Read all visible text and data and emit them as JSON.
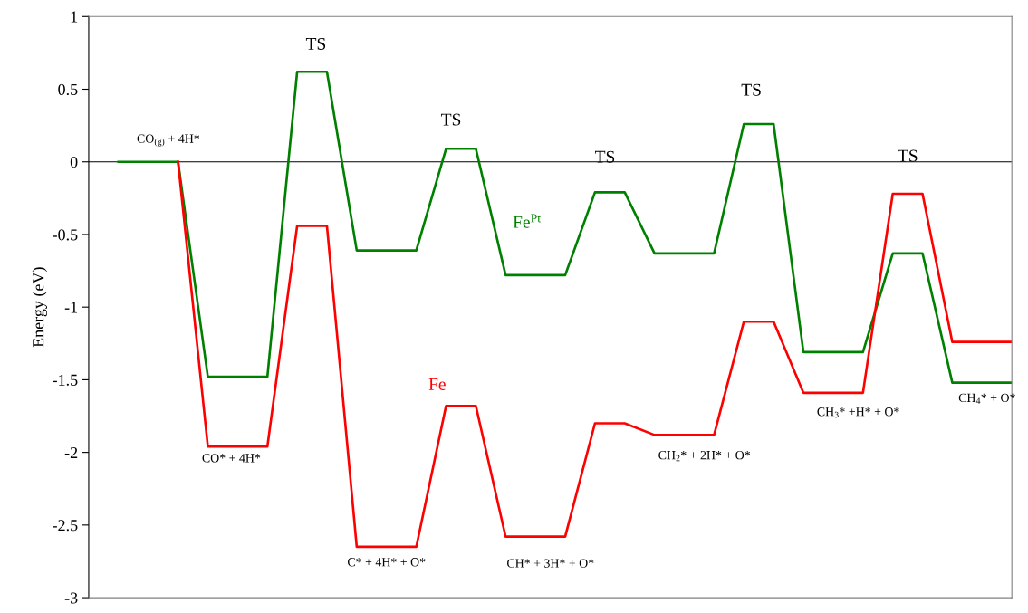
{
  "chart_data": {
    "type": "line",
    "ylabel": "Energy (eV)",
    "categories": [
      null,
      null,
      null,
      null,
      null,
      null,
      null,
      null,
      null,
      null,
      null,
      null,
      null,
      null,
      null,
      null,
      null,
      null,
      null,
      null,
      null,
      null,
      null,
      null,
      null,
      null,
      null,
      null,
      null,
      null,
      null
    ],
    "ylim": [
      -3,
      1
    ],
    "yticks": [
      -3,
      -2.5,
      -2,
      -1.5,
      -1,
      -0.5,
      0,
      0.5,
      1
    ],
    "tick_labels": "y",
    "grid": false,
    "legend": false,
    "marker": "none",
    "line_style": "solid",
    "series": [
      {
        "name": "Fe$^{Pt}$",
        "color": "#008000",
        "values": [
          0,
          0,
          0,
          -1.48,
          -1.48,
          -1.48,
          0.62,
          0.62,
          -0.61,
          -0.61,
          -0.61,
          0.09,
          0.09,
          -0.78,
          -0.78,
          -0.78,
          -0.21,
          -0.21,
          -0.63,
          -0.63,
          -0.63,
          0.26,
          0.26,
          -1.31,
          -1.31,
          -1.31,
          -0.63,
          -0.63,
          -1.52,
          -1.52,
          -1.52
        ]
      },
      {
        "name": "Fe",
        "color": "#ff0000",
        "values": [
          null,
          null,
          0,
          -1.96,
          -1.96,
          -1.96,
          -0.44,
          -0.44,
          -2.65,
          -2.65,
          -2.65,
          -1.68,
          -1.68,
          -2.58,
          -2.58,
          -2.58,
          -1.8,
          -1.8,
          -1.88,
          -1.88,
          -1.88,
          -1.1,
          -1.1,
          -1.59,
          -1.59,
          -1.59,
          -0.22,
          -0.22,
          -1.24,
          -1.24,
          -1.24
        ]
      }
    ],
    "ref_lines": [
      {
        "axis": "y",
        "value": 0,
        "color": "#000000"
      }
    ],
    "annotations": [
      "CO$_{(g)}$ + 4H*",
      "CO* + 4H*",
      "C* + 4H* + O*",
      "CH* + 3H* + O*",
      "CH$_{2}$* + 2H* + O*",
      "CH$_{3}$* +H* + O*",
      "CH$_{4}$* + O*",
      "TS",
      "TS",
      "TS",
      "TS",
      "TS"
    ]
  }
}
